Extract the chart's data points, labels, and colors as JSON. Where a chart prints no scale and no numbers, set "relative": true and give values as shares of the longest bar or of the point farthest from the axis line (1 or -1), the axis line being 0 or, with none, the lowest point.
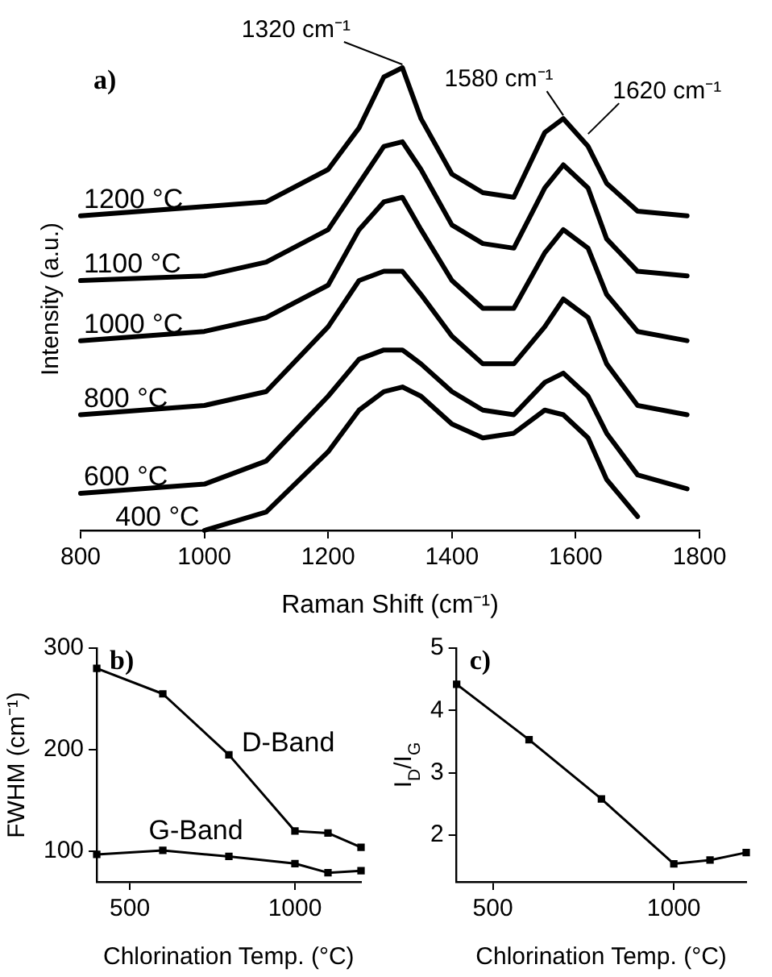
{
  "chart_data": [
    {
      "type": "line",
      "relative": true,
      "xlabel": "Raman Shift (cm⁻¹)",
      "ylabel": "Intensity (a.u.)",
      "xlim": [
        800,
        1800
      ],
      "xticks": [
        800,
        1000,
        1200,
        1400,
        1600,
        1800
      ],
      "marker": "none",
      "legend": false,
      "grid": false,
      "x": [
        800,
        1000,
        1100,
        1200,
        1250,
        1290,
        1320,
        1350,
        1400,
        1450,
        1500,
        1550,
        1580,
        1620,
        1650,
        1700,
        1780
      ],
      "annotations": [
        "a)",
        {
          "text": "1320 cm⁻¹",
          "x": 1320,
          "y": 1.0
        },
        {
          "text": "1580 cm⁻¹",
          "x": 1580,
          "y": 0.89
        },
        {
          "text": "1620 cm⁻¹",
          "x": 1620,
          "y": 0.85
        }
      ],
      "series": [
        {
          "name": "1200 °C",
          "color": "#000000",
          "values": [
            0.68,
            0.7,
            0.71,
            0.78,
            0.87,
            0.98,
            1.0,
            0.89,
            0.77,
            0.73,
            0.72,
            0.86,
            0.89,
            0.83,
            0.75,
            0.69,
            0.68
          ]
        },
        {
          "name": "1100 °C",
          "color": "#000000",
          "values": [
            0.54,
            0.55,
            0.58,
            0.65,
            0.75,
            0.83,
            0.84,
            0.78,
            0.66,
            0.62,
            0.61,
            0.74,
            0.79,
            0.74,
            0.63,
            0.56,
            0.55
          ]
        },
        {
          "name": "1000 °C",
          "color": "#000000",
          "values": [
            0.41,
            0.43,
            0.46,
            0.53,
            0.65,
            0.71,
            0.72,
            0.65,
            0.54,
            0.48,
            0.48,
            0.6,
            0.65,
            0.61,
            0.51,
            0.43,
            0.41
          ]
        },
        {
          "name": "800 °C",
          "color": "#000000",
          "values": [
            0.25,
            0.27,
            0.3,
            0.44,
            0.54,
            0.56,
            0.56,
            0.51,
            0.42,
            0.36,
            0.36,
            0.44,
            0.5,
            0.46,
            0.36,
            0.27,
            0.25
          ]
        },
        {
          "name": "600 °C",
          "color": "#000000",
          "values": [
            0.08,
            0.1,
            0.15,
            0.29,
            0.37,
            0.39,
            0.39,
            0.36,
            0.3,
            0.26,
            0.25,
            0.32,
            0.34,
            0.29,
            0.21,
            0.12,
            0.09
          ]
        },
        {
          "name": "400 °C",
          "color": "#000000",
          "values": [
            null,
            0,
            0.04,
            0.17,
            0.26,
            0.3,
            0.31,
            0.29,
            0.23,
            0.2,
            0.21,
            0.26,
            0.25,
            0.2,
            0.11,
            0.03,
            null
          ]
        }
      ]
    },
    {
      "type": "line",
      "xlabel": "Chlorination Temp. (°C)",
      "ylabel": "FWHM (cm⁻¹)",
      "xlim": [
        400,
        1200
      ],
      "xticks": [
        500,
        1000
      ],
      "ylim": [
        70,
        300
      ],
      "yticks": [
        100,
        200,
        300
      ],
      "marker": "square",
      "legend": false,
      "grid": false,
      "x": [
        400,
        600,
        800,
        1000,
        1100,
        1200
      ],
      "annotations": [
        "b)"
      ],
      "series": [
        {
          "name": "D-Band",
          "color": "#000000",
          "values": [
            280,
            255,
            195,
            120,
            118,
            104
          ]
        },
        {
          "name": "G-Band",
          "color": "#000000",
          "values": [
            97,
            101,
            95,
            88,
            79,
            81
          ]
        }
      ]
    },
    {
      "type": "line",
      "xlabel": "Chlorination Temp. (°C)",
      "ylabel": "I$_{D}$/I$_{G}$",
      "xlim": [
        400,
        1200
      ],
      "xticks": [
        500,
        1000
      ],
      "ylim": [
        1.25,
        5
      ],
      "yticks": [
        2,
        3,
        4,
        5
      ],
      "marker": "square",
      "legend": false,
      "grid": false,
      "x": [
        400,
        600,
        800,
        1000,
        1100,
        1200
      ],
      "annotations": [
        "c)"
      ],
      "series": [
        {
          "color": "#000000",
          "values": [
            4.42,
            3.53,
            2.58,
            1.54,
            1.6,
            1.72
          ]
        }
      ]
    }
  ]
}
